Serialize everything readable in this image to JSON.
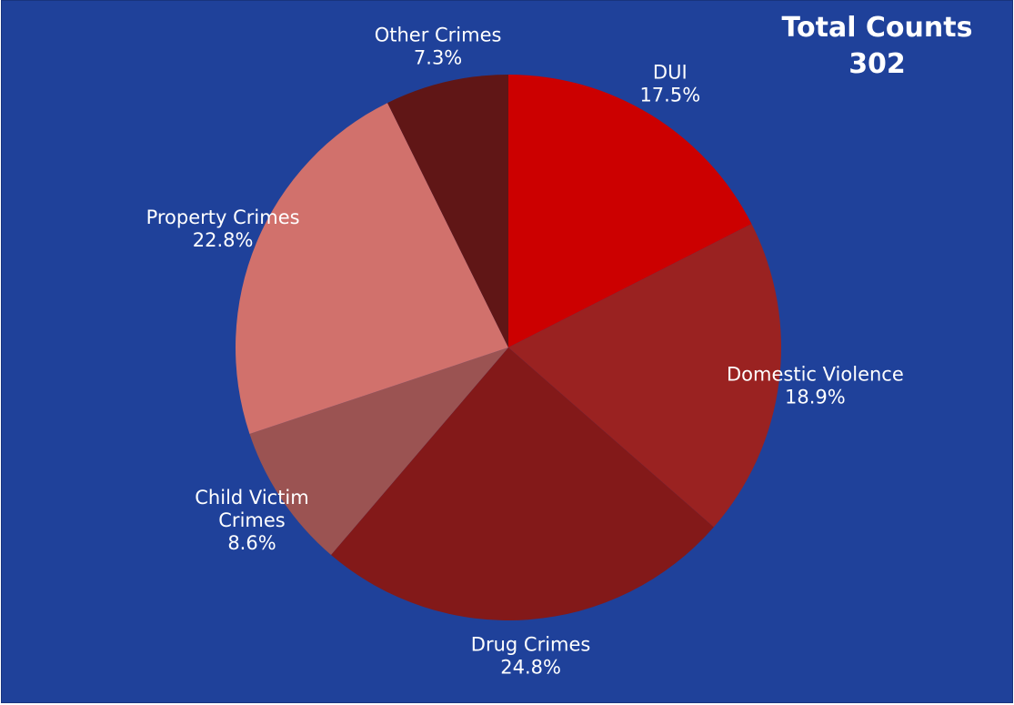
{
  "total": {
    "title": "Total Counts",
    "value": "302"
  },
  "chart_data": {
    "type": "pie",
    "start_angle_deg": 0,
    "direction": "clockwise",
    "slices": [
      {
        "name": "DUI",
        "label_lines": [
          "DUI",
          "17.5%"
        ],
        "percent": 17.5,
        "color": "#cc0000"
      },
      {
        "name": "Domestic Violence",
        "label_lines": [
          "Domestic Violence",
          "18.9%"
        ],
        "percent": 18.9,
        "color": "#9a2221"
      },
      {
        "name": "Drug Crimes",
        "label_lines": [
          "Drug Crimes",
          "24.8%"
        ],
        "percent": 24.8,
        "color": "#831919"
      },
      {
        "name": "Child Victim Crimes",
        "label_lines": [
          "Child Victim",
          "Crimes",
          "8.6%"
        ],
        "percent": 8.6,
        "color": "#9b5352"
      },
      {
        "name": "Property Crimes",
        "label_lines": [
          "Property Crimes",
          "22.8%"
        ],
        "percent": 22.8,
        "color": "#d1716c"
      },
      {
        "name": "Other Crimes",
        "label_lines": [
          "Other Crimes",
          "7.3%"
        ],
        "percent": 7.3,
        "color": "#601616"
      }
    ],
    "colors": {
      "background": "#1f419a",
      "label_text": "#ffffff"
    }
  }
}
